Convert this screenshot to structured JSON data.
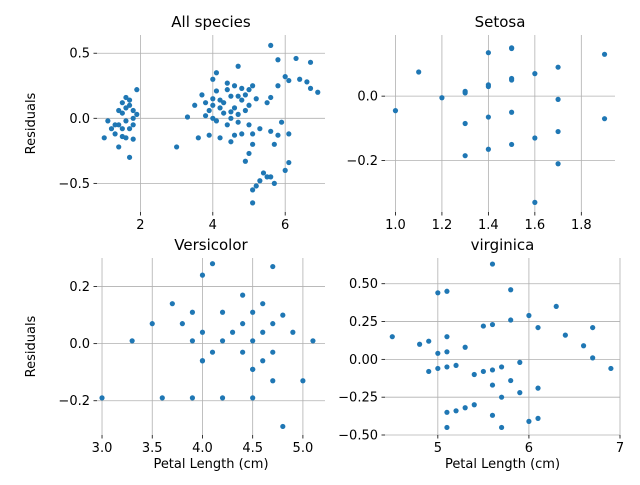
{
  "colors": {
    "marker": "#1f77b4",
    "grid": "#b0b0b0",
    "axis": "#000000"
  },
  "chart_data": [
    {
      "type": "scatter",
      "title": "All species",
      "xlabel": "",
      "ylabel": "Residuals",
      "xlim": [
        0.8,
        7.1
      ],
      "ylim": [
        -0.72,
        0.64
      ],
      "xticks": [
        2,
        4,
        6
      ],
      "xtick_labels": [
        "2",
        "4",
        "6"
      ],
      "yticks": [
        -0.5,
        0.0,
        0.5
      ],
      "ytick_labels": [
        "−0.5",
        "0.0",
        "0.5"
      ],
      "grid": true,
      "points": [
        [
          1.0,
          -0.15
        ],
        [
          1.1,
          -0.02
        ],
        [
          1.2,
          -0.08
        ],
        [
          1.3,
          -0.05
        ],
        [
          1.3,
          -0.12
        ],
        [
          1.4,
          0.06
        ],
        [
          1.4,
          -0.22
        ],
        [
          1.4,
          -0.05
        ],
        [
          1.5,
          0.12
        ],
        [
          1.5,
          0.04
        ],
        [
          1.5,
          -0.08
        ],
        [
          1.5,
          -0.14
        ],
        [
          1.6,
          0.16
        ],
        [
          1.6,
          0.08
        ],
        [
          1.6,
          -0.02
        ],
        [
          1.6,
          -0.15
        ],
        [
          1.7,
          0.14
        ],
        [
          1.7,
          0.1
        ],
        [
          1.7,
          -0.08
        ],
        [
          1.7,
          -0.3
        ],
        [
          1.8,
          0.06
        ],
        [
          1.8,
          0.0
        ],
        [
          1.8,
          -0.05
        ],
        [
          1.8,
          -0.16
        ],
        [
          1.9,
          0.22
        ],
        [
          1.9,
          0.03
        ],
        [
          3.0,
          -0.22
        ],
        [
          3.3,
          0.01
        ],
        [
          3.5,
          0.1
        ],
        [
          3.6,
          -0.15
        ],
        [
          3.7,
          0.18
        ],
        [
          3.8,
          0.02
        ],
        [
          3.8,
          0.12
        ],
        [
          3.9,
          0.06
        ],
        [
          3.9,
          -0.13
        ],
        [
          4.0,
          0.15
        ],
        [
          4.0,
          0.1
        ],
        [
          4.0,
          0.3
        ],
        [
          4.0,
          0.0
        ],
        [
          4.1,
          0.21
        ],
        [
          4.1,
          0.35
        ],
        [
          4.1,
          -0.02
        ],
        [
          4.2,
          0.08
        ],
        [
          4.2,
          0.14
        ],
        [
          4.2,
          -0.15
        ],
        [
          4.3,
          0.04
        ],
        [
          4.3,
          0.12
        ],
        [
          4.4,
          0.22
        ],
        [
          4.4,
          -0.05
        ],
        [
          4.4,
          0.27
        ],
        [
          4.5,
          0.17
        ],
        [
          4.5,
          0.0
        ],
        [
          4.5,
          -0.18
        ],
        [
          4.5,
          0.05
        ],
        [
          4.6,
          0.25
        ],
        [
          4.6,
          0.08
        ],
        [
          4.6,
          -0.13
        ],
        [
          4.7,
          0.17
        ],
        [
          4.7,
          -0.03
        ],
        [
          4.7,
          0.4
        ],
        [
          4.7,
          0.03
        ],
        [
          4.8,
          0.23
        ],
        [
          4.8,
          -0.12
        ],
        [
          4.8,
          0.14
        ],
        [
          4.9,
          0.18
        ],
        [
          4.9,
          -0.33
        ],
        [
          4.9,
          0.06
        ],
        [
          5.0,
          0.22
        ],
        [
          5.0,
          0.1
        ],
        [
          5.0,
          -0.05
        ],
        [
          5.0,
          -0.27
        ],
        [
          5.1,
          0.25
        ],
        [
          5.1,
          -0.55
        ],
        [
          5.1,
          -0.2
        ],
        [
          5.1,
          -0.12
        ],
        [
          5.1,
          -0.65
        ],
        [
          5.2,
          0.15
        ],
        [
          5.2,
          -0.52
        ],
        [
          5.3,
          -0.48
        ],
        [
          5.3,
          -0.08
        ],
        [
          5.4,
          -0.42
        ],
        [
          5.5,
          0.12
        ],
        [
          5.5,
          -0.45
        ],
        [
          5.6,
          0.56
        ],
        [
          5.6,
          -0.1
        ],
        [
          5.6,
          -0.45
        ],
        [
          5.6,
          0.16
        ],
        [
          5.7,
          -0.5
        ],
        [
          5.7,
          -0.2
        ],
        [
          5.8,
          0.45
        ],
        [
          5.8,
          0.25
        ],
        [
          5.8,
          -0.13
        ],
        [
          5.9,
          -0.03
        ],
        [
          6.0,
          0.32
        ],
        [
          6.0,
          -0.4
        ],
        [
          6.1,
          0.29
        ],
        [
          6.1,
          -0.12
        ],
        [
          6.1,
          -0.34
        ],
        [
          6.3,
          0.46
        ],
        [
          6.4,
          0.3
        ],
        [
          6.6,
          0.28
        ],
        [
          6.7,
          0.43
        ],
        [
          6.7,
          0.23
        ],
        [
          6.9,
          0.2
        ]
      ]
    },
    {
      "type": "scatter",
      "title": "Setosa",
      "xlabel": "",
      "ylabel": "",
      "xlim": [
        0.955,
        1.945
      ],
      "ylim": [
        -0.36,
        0.19
      ],
      "xticks": [
        1.0,
        1.2,
        1.4,
        1.6,
        1.8
      ],
      "xtick_labels": [
        "1.0",
        "1.2",
        "1.4",
        "1.6",
        "1.8"
      ],
      "yticks": [
        -0.2,
        0.0
      ],
      "ytick_labels": [
        "−0.2",
        "0.0"
      ],
      "grid": true,
      "points": [
        [
          1.0,
          -0.045
        ],
        [
          1.1,
          0.075
        ],
        [
          1.2,
          -0.005
        ],
        [
          1.3,
          0.015
        ],
        [
          1.3,
          0.01
        ],
        [
          1.3,
          -0.085
        ],
        [
          1.3,
          -0.185
        ],
        [
          1.4,
          0.135
        ],
        [
          1.4,
          0.035
        ],
        [
          1.4,
          0.03
        ],
        [
          1.4,
          -0.065
        ],
        [
          1.4,
          -0.165
        ],
        [
          1.5,
          0.15
        ],
        [
          1.5,
          0.148
        ],
        [
          1.5,
          0.055
        ],
        [
          1.5,
          0.05
        ],
        [
          1.5,
          -0.05
        ],
        [
          1.5,
          -0.15
        ],
        [
          1.6,
          0.07
        ],
        [
          1.6,
          -0.13
        ],
        [
          1.6,
          -0.33
        ],
        [
          1.7,
          0.09
        ],
        [
          1.7,
          -0.01
        ],
        [
          1.7,
          -0.11
        ],
        [
          1.7,
          -0.21
        ],
        [
          1.9,
          0.13
        ],
        [
          1.9,
          -0.07
        ]
      ]
    },
    {
      "type": "scatter",
      "title": "Versicolor",
      "xlabel": "Petal Length (cm)",
      "ylabel": "Residuals",
      "xlim": [
        2.95,
        5.22
      ],
      "ylim": [
        -0.32,
        0.3
      ],
      "xticks": [
        3.0,
        3.5,
        4.0,
        4.5,
        5.0
      ],
      "xtick_labels": [
        "3.0",
        "3.5",
        "4.0",
        "4.5",
        "5.0"
      ],
      "yticks": [
        -0.2,
        0.0,
        0.2
      ],
      "ytick_labels": [
        "−0.2",
        "0.0",
        "0.2"
      ],
      "grid": true,
      "points": [
        [
          3.0,
          -0.19
        ],
        [
          3.3,
          0.01
        ],
        [
          3.5,
          0.07
        ],
        [
          3.6,
          -0.19
        ],
        [
          3.7,
          0.14
        ],
        [
          3.8,
          0.07
        ],
        [
          3.9,
          0.11
        ],
        [
          3.9,
          0.01
        ],
        [
          3.9,
          -0.19
        ],
        [
          4.0,
          0.24
        ],
        [
          4.0,
          0.04
        ],
        [
          4.0,
          -0.06
        ],
        [
          4.0,
          -0.06
        ],
        [
          4.1,
          0.28
        ],
        [
          4.1,
          -0.03
        ],
        [
          4.2,
          0.11
        ],
        [
          4.2,
          0.01
        ],
        [
          4.2,
          -0.19
        ],
        [
          4.3,
          0.04
        ],
        [
          4.4,
          0.17
        ],
        [
          4.4,
          0.07
        ],
        [
          4.4,
          -0.03
        ],
        [
          4.5,
          0.11
        ],
        [
          4.5,
          0.01
        ],
        [
          4.5,
          -0.09
        ],
        [
          4.5,
          -0.09
        ],
        [
          4.5,
          -0.19
        ],
        [
          4.6,
          0.14
        ],
        [
          4.6,
          0.04
        ],
        [
          4.6,
          -0.06
        ],
        [
          4.7,
          0.27
        ],
        [
          4.7,
          0.07
        ],
        [
          4.7,
          -0.03
        ],
        [
          4.7,
          -0.13
        ],
        [
          4.8,
          0.1
        ],
        [
          4.8,
          -0.29
        ],
        [
          4.9,
          0.04
        ],
        [
          5.0,
          -0.13
        ],
        [
          5.1,
          0.01
        ]
      ]
    },
    {
      "type": "scatter",
      "title": "virginica",
      "xlabel": "Petal Length (cm)",
      "ylabel": "",
      "xlim": [
        4.42,
        7.0
      ],
      "ylim": [
        -0.5,
        0.67
      ],
      "xticks": [
        5,
        6,
        7
      ],
      "xtick_labels": [
        "5",
        "6",
        "7"
      ],
      "yticks": [
        -0.5,
        -0.25,
        0.0,
        0.25,
        0.5
      ],
      "ytick_labels": [
        "−0.50",
        "−0.25",
        "0.00",
        "0.25",
        "0.50"
      ],
      "grid": true,
      "points": [
        [
          4.5,
          0.15
        ],
        [
          4.8,
          0.1
        ],
        [
          4.9,
          0.12
        ],
        [
          4.9,
          -0.08
        ],
        [
          5.0,
          0.44
        ],
        [
          5.0,
          0.04
        ],
        [
          5.0,
          -0.06
        ],
        [
          5.1,
          0.45
        ],
        [
          5.1,
          0.15
        ],
        [
          5.1,
          0.05
        ],
        [
          5.1,
          -0.05
        ],
        [
          5.1,
          -0.35
        ],
        [
          5.1,
          -0.45
        ],
        [
          5.2,
          -0.04
        ],
        [
          5.2,
          -0.34
        ],
        [
          5.3,
          0.08
        ],
        [
          5.3,
          -0.32
        ],
        [
          5.4,
          -0.1
        ],
        [
          5.4,
          -0.3
        ],
        [
          5.5,
          0.22
        ],
        [
          5.5,
          -0.08
        ],
        [
          5.6,
          0.63
        ],
        [
          5.6,
          0.23
        ],
        [
          5.6,
          -0.07
        ],
        [
          5.6,
          -0.17
        ],
        [
          5.6,
          -0.37
        ],
        [
          5.7,
          -0.05
        ],
        [
          5.7,
          -0.25
        ],
        [
          5.7,
          -0.45
        ],
        [
          5.8,
          0.46
        ],
        [
          5.8,
          0.26
        ],
        [
          5.8,
          -0.14
        ],
        [
          5.9,
          -0.02
        ],
        [
          5.9,
          -0.22
        ],
        [
          6.0,
          0.29
        ],
        [
          6.0,
          -0.41
        ],
        [
          6.1,
          0.21
        ],
        [
          6.1,
          -0.19
        ],
        [
          6.1,
          -0.39
        ],
        [
          6.3,
          0.35
        ],
        [
          6.4,
          0.16
        ],
        [
          6.6,
          0.09
        ],
        [
          6.7,
          0.21
        ],
        [
          6.7,
          0.01
        ],
        [
          6.9,
          -0.06
        ]
      ]
    }
  ]
}
